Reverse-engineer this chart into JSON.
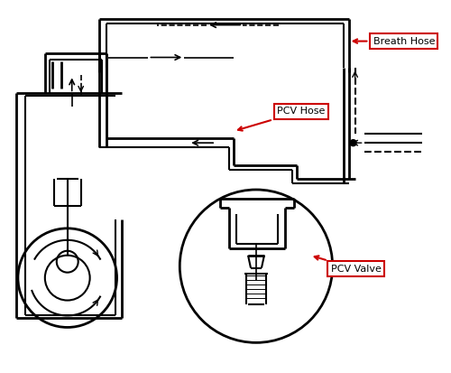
{
  "bg_color": "#ffffff",
  "line_color": "#000000",
  "red_color": "#cc0000",
  "label_bg": "#ffffff",
  "label_border": "#cc0000",
  "labels": {
    "breath_hose": "Breath Hose",
    "pcv_hose": "PCV Hose",
    "pcv_valve": "PCV Valve"
  },
  "figsize": [
    5.0,
    4.13
  ],
  "dpi": 100
}
